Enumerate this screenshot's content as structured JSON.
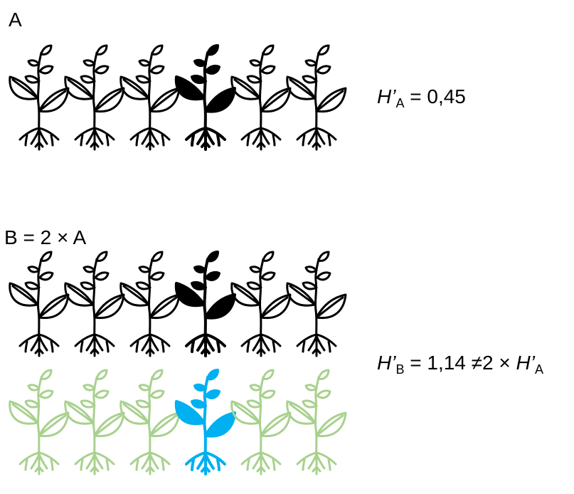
{
  "panel_a": {
    "label": "A",
    "formula": {
      "symbol": "H’",
      "subscript": "A",
      "rest": " = 0,45"
    },
    "plants": [
      "outline",
      "outline",
      "outline",
      "solid",
      "outline",
      "outline"
    ],
    "colors": {
      "outline": "#000000",
      "solid": "#000000"
    }
  },
  "panel_b": {
    "label": "B = 2 × A",
    "formula": {
      "symbol": "H’",
      "subscript": "B",
      "middle": " = 1,14 ≠2 × ",
      "symbol2": "H’",
      "subscript2": "A"
    },
    "row1": {
      "plants": [
        "outline",
        "outline",
        "outline",
        "solid",
        "outline",
        "outline"
      ],
      "colors": {
        "outline": "#000000",
        "solid": "#000000"
      }
    },
    "row2": {
      "plants": [
        "outline",
        "outline",
        "outline",
        "solid",
        "outline",
        "outline"
      ],
      "colors": {
        "outline": "#a9d18e",
        "solid": "#00b0f0"
      }
    }
  }
}
